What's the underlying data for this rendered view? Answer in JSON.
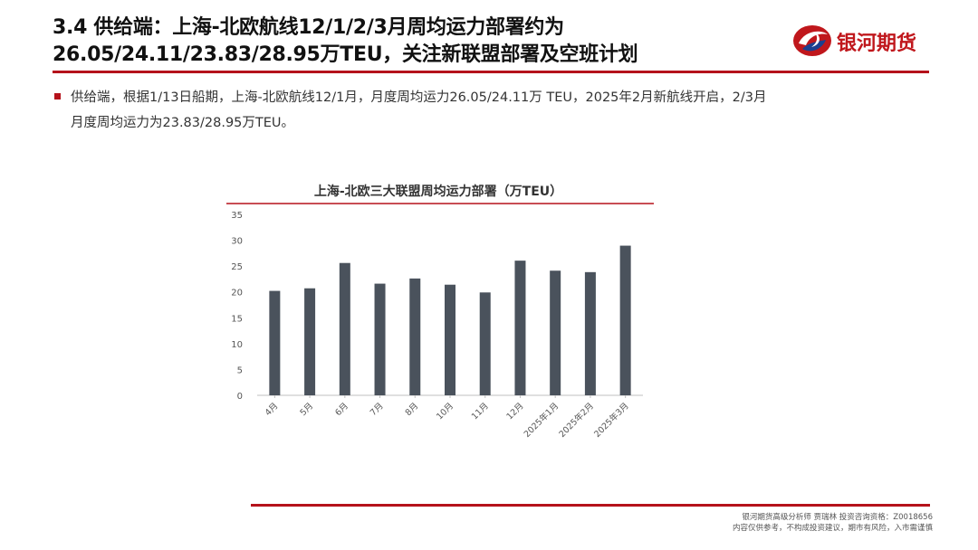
{
  "header": {
    "title_line1": "3.4 供给端：上海-北欧航线12/1/2/3月周均运力部署约为",
    "title_line2": "26.05/24.11/23.83/28.95万TEU，关注新联盟部署及空班计划",
    "logo_text": "银河期货",
    "logo_icon": "galaxy-logo-icon"
  },
  "bullet": {
    "line1": "供给端，根据1/13日船期，上海-北欧航线12/1月，月度周均运力26.05/24.11万 TEU，2025年2月新航线开启，2/3月",
    "line2": "月度周均运力为23.83/28.95万TEU。"
  },
  "footer": {
    "line1": "银河期货高级分析师 贾瑞林 投资咨询资格：Z0018656",
    "line2": "内容仅供参考，不构成投资建议，期市有风险，入市需谨慎"
  },
  "colors": {
    "accent": "#b5121b",
    "bar": "#4a525c",
    "logo_red": "#c0171c",
    "logo_blue": "#1c3f8f"
  },
  "chart_data": {
    "type": "bar",
    "title": "上海-北欧三大联盟周均运力部署（万TEU）",
    "categories": [
      "4月",
      "5月",
      "6月",
      "7月",
      "8月",
      "10月",
      "11月",
      "12月",
      "2025年1月",
      "2025年2月",
      "2025年3月"
    ],
    "values": [
      20.2,
      20.7,
      25.6,
      21.6,
      22.6,
      21.4,
      19.9,
      26.05,
      24.11,
      23.83,
      28.95
    ],
    "ylim": [
      0,
      35
    ],
    "yticks": [
      0,
      5,
      10,
      15,
      20,
      25,
      30,
      35
    ],
    "xlabel": "",
    "ylabel": "",
    "grid": false
  }
}
